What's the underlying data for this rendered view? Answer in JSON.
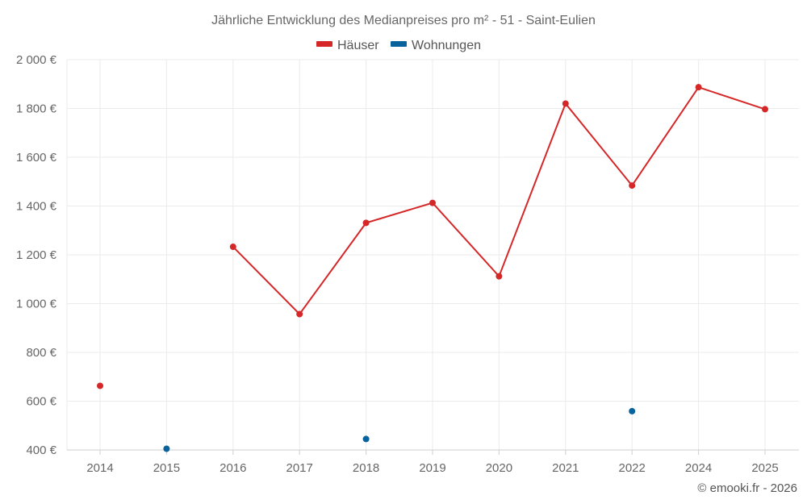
{
  "chart_data": {
    "type": "line",
    "title": "Jährliche Entwicklung des Medianpreises pro m² - 51 - Saint-Eulien",
    "categories": [
      "2014",
      "2015",
      "2016",
      "2017",
      "2018",
      "2019",
      "2020",
      "2021",
      "2022",
      "2024",
      "2025"
    ],
    "y_ticks": [
      "2 000 €",
      "1 800 €",
      "1 600 €",
      "1 400 €",
      "1 200 €",
      "1 000 €",
      "800 €",
      "600 €",
      "400 €"
    ],
    "ylim": [
      400,
      2000
    ],
    "grid": true,
    "legend_position": "top-center",
    "series": [
      {
        "name": "Häuser",
        "color": "#d62728",
        "values": [
          663,
          null,
          1233,
          957,
          1331,
          1413,
          1112,
          1820,
          1484,
          1887,
          1797
        ]
      },
      {
        "name": "Wohnungen",
        "color": "#08639c",
        "values": [
          null,
          405,
          null,
          null,
          445,
          null,
          null,
          null,
          559,
          null,
          null
        ]
      }
    ]
  },
  "credit": "© emooki.fr - 2026"
}
